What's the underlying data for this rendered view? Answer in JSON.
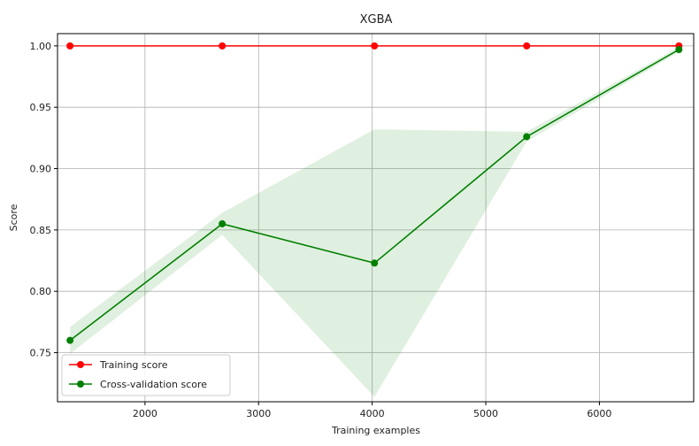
{
  "chart_data": {
    "type": "line",
    "title": "XGBA",
    "xlabel": "Training examples",
    "ylabel": "Score",
    "xlim": [
      1230,
      6830
    ],
    "ylim": [
      0.71,
      1.01
    ],
    "xticks": [
      2000,
      3000,
      4000,
      5000,
      6000
    ],
    "yticks": [
      0.75,
      0.8,
      0.85,
      0.9,
      0.95,
      1.0
    ],
    "xtick_labels": [
      "2000",
      "3000",
      "4000",
      "5000",
      "6000"
    ],
    "ytick_labels": [
      "0.75",
      "0.80",
      "0.85",
      "0.90",
      "0.95",
      "1.00"
    ],
    "grid": true,
    "legend_position": "lower-left",
    "x": [
      1340,
      2680,
      4020,
      5360,
      6700
    ],
    "series": [
      {
        "name": "Training score",
        "color": "#ff0000",
        "values": [
          1.0,
          1.0,
          1.0,
          1.0,
          1.0
        ],
        "band_lower": [
          1.0,
          1.0,
          1.0,
          1.0,
          1.0
        ],
        "band_upper": [
          1.0,
          1.0,
          1.0,
          1.0,
          1.0
        ]
      },
      {
        "name": "Cross-validation score",
        "color": "#008000",
        "band_color": "#008000",
        "values": [
          0.76,
          0.855,
          0.823,
          0.926,
          0.997
        ],
        "band_lower": [
          0.749,
          0.846,
          0.714,
          0.922,
          0.995
        ],
        "band_upper": [
          0.771,
          0.864,
          0.932,
          0.93,
          0.999
        ]
      }
    ]
  }
}
